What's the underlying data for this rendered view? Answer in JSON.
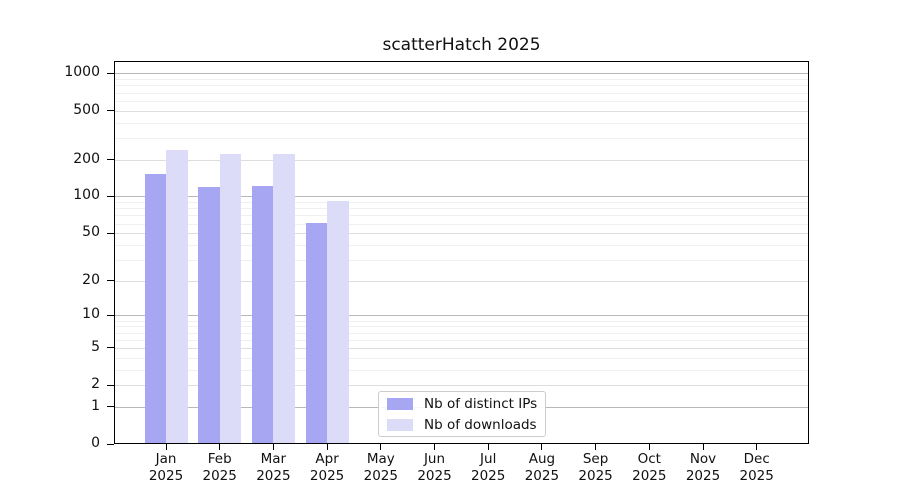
{
  "chart_data": {
    "type": "bar",
    "title": "scatterHatch 2025",
    "scale": "log1p",
    "grid": "both",
    "legend_position": "lower-center",
    "categories": [
      "Jan 2025",
      "Feb 2025",
      "Mar 2025",
      "Apr 2025",
      "May 2025",
      "Jun 2025",
      "Jul 2025",
      "Aug 2025",
      "Sep 2025",
      "Oct 2025",
      "Nov 2025",
      "Dec 2025"
    ],
    "y_ticks": [
      0,
      1,
      2,
      5,
      10,
      20,
      50,
      100,
      200,
      500,
      1000
    ],
    "ylim": [
      0,
      1260
    ],
    "series": [
      {
        "name": "Nb of distinct IPs",
        "color": "#a6a6f2",
        "values": [
          152,
          120,
          122,
          61,
          null,
          null,
          null,
          null,
          null,
          null,
          null,
          null
        ]
      },
      {
        "name": "Nb of downloads",
        "color": "#dcdcf8",
        "values": [
          240,
          222,
          222,
          92,
          null,
          null,
          null,
          null,
          null,
          null,
          null,
          null
        ]
      }
    ]
  }
}
